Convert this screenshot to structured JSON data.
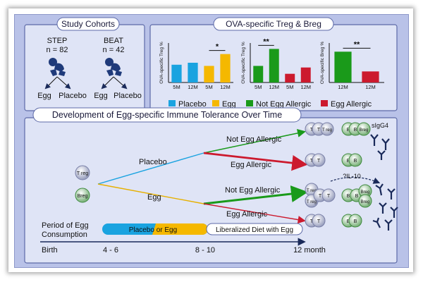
{
  "cohorts": {
    "title": "Study Cohorts",
    "studies": [
      {
        "name": "STEP",
        "n": "n = 82",
        "arm1": "Egg",
        "arm2": "Placebo"
      },
      {
        "name": "BEAT",
        "n": "n = 42",
        "arm1": "Egg",
        "arm2": "Placebo"
      }
    ]
  },
  "treg_panel": {
    "title": "OVA-specific Treg & Breg",
    "legend": [
      {
        "label": "Placebo",
        "color": "#1aa3e0"
      },
      {
        "label": "Egg",
        "color": "#f5b800"
      },
      {
        "label": "Not Egg Allergic",
        "color": "#1a9a1a"
      },
      {
        "label": "Egg Allergic",
        "color": "#cc1a2e"
      }
    ],
    "sig": "*",
    "sig2": "**",
    "sig3": "**"
  },
  "chart_data": [
    {
      "type": "bar",
      "ylabel": "OVA-specific Treg %",
      "categories": [
        "5M",
        "12M",
        "5M",
        "12M"
      ],
      "values": [
        0.45,
        0.5,
        0.42,
        0.72
      ],
      "colors": [
        "#1aa3e0",
        "#1aa3e0",
        "#f5b800",
        "#f5b800"
      ],
      "annotations": [
        "*"
      ]
    },
    {
      "type": "bar",
      "ylabel": "OVA-specific Treg %",
      "categories": [
        "5M",
        "12M",
        "5M",
        "12M"
      ],
      "values": [
        0.42,
        0.85,
        0.22,
        0.38
      ],
      "colors": [
        "#1a9a1a",
        "#1a9a1a",
        "#cc1a2e",
        "#cc1a2e"
      ],
      "annotations": [
        "**"
      ]
    },
    {
      "type": "bar",
      "ylabel": "OVA-specific Breg %",
      "categories": [
        "12M",
        "12M"
      ],
      "values": [
        0.78,
        0.28
      ],
      "colors": [
        "#1a9a1a",
        "#cc1a2e"
      ],
      "annotations": [
        "**"
      ]
    }
  ],
  "timeline": {
    "title": "Development of Egg-specific Immune Tolerance Over Time",
    "placebo": "Placebo",
    "egg": "Egg",
    "not_allergic": "Not Egg Allergic",
    "allergic": "Egg Allergic",
    "not_allergic_2": "Not Egg Allergic",
    "allergic_2": "Egg Allergic",
    "treg": "T reg",
    "breg": "Breg",
    "t": "T",
    "b": "B",
    "sigg4": "sIgG4",
    "il10": "?IL-10",
    "period_label_1": "Period of Egg",
    "period_label_2": "Consumption",
    "placebo_or_egg": "Placebo or Egg",
    "liberalized": "Liberalized Diet with Egg",
    "axis": [
      "Birth",
      "4 - 6",
      "8 - 10",
      "12 month"
    ]
  }
}
